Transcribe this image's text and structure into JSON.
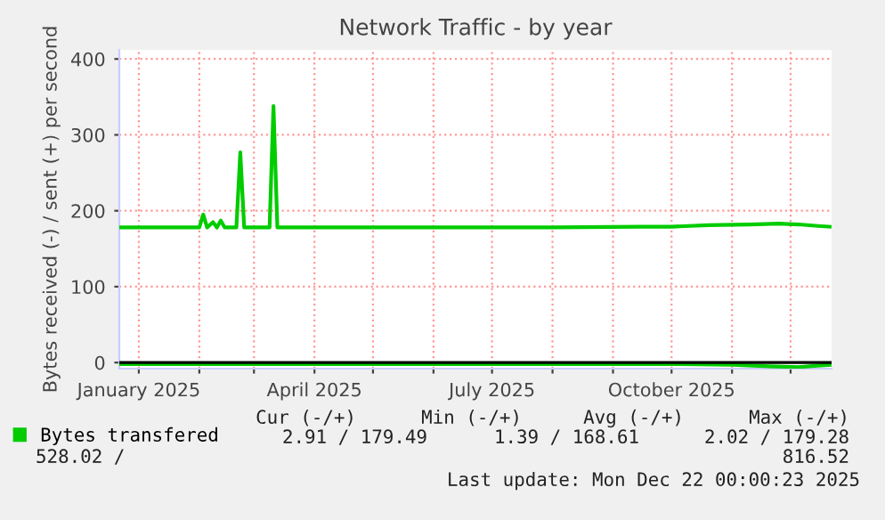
{
  "chart_data": {
    "type": "line",
    "title": "Network Traffic - by year",
    "ylabel": "Bytes received (-) / sent (+) per second",
    "x": [
      "2024-12-22",
      "2025-01-10",
      "2025-02-01",
      "2025-02-03",
      "2025-02-05",
      "2025-02-08",
      "2025-02-10",
      "2025-02-12",
      "2025-02-14",
      "2025-02-20",
      "2025-02-22",
      "2025-02-24",
      "2025-03-09",
      "2025-03-11",
      "2025-03-13",
      "2025-04-15",
      "2025-06-01",
      "2025-08-01",
      "2025-09-15",
      "2025-10-01",
      "2025-10-20",
      "2025-11-10",
      "2025-11-25",
      "2025-12-05",
      "2025-12-15",
      "2025-12-21"
    ],
    "series": [
      {
        "name": "Bytes transfered",
        "color": "#00cc00",
        "values": [
          178,
          178,
          178,
          195,
          178,
          185,
          178,
          187,
          178,
          178,
          277,
          178,
          178,
          338,
          178,
          178,
          178,
          178,
          179,
          179,
          181,
          182,
          183,
          182,
          180,
          179
        ]
      },
      {
        "color": "#00cc00",
        "x": [
          "2024-12-22",
          "2025-06-01",
          "2025-10-01",
          "2025-11-01",
          "2025-11-20",
          "2025-12-05",
          "2025-12-15",
          "2025-12-21"
        ],
        "values": [
          -2,
          -2,
          -2,
          -3,
          -5,
          -6,
          -4,
          -3
        ]
      }
    ],
    "xlim": [
      "2024-12-22",
      "2025-12-22"
    ],
    "xticks": [
      {
        "value": "2025-01-01",
        "label": "January 2025"
      },
      {
        "value": "2025-02-01",
        "label": null
      },
      {
        "value": "2025-03-01",
        "label": null
      },
      {
        "value": "2025-04-01",
        "label": "April 2025"
      },
      {
        "value": "2025-05-01",
        "label": null
      },
      {
        "value": "2025-06-01",
        "label": null
      },
      {
        "value": "2025-07-01",
        "label": "July 2025"
      },
      {
        "value": "2025-08-01",
        "label": null
      },
      {
        "value": "2025-09-01",
        "label": null
      },
      {
        "value": "2025-10-01",
        "label": "October 2025"
      },
      {
        "value": "2025-11-01",
        "label": null
      },
      {
        "value": "2025-12-01",
        "label": null
      }
    ],
    "ylim": [
      -8,
      412
    ],
    "yticks": [
      0,
      100,
      200,
      300,
      400
    ],
    "ref_lines": [
      {
        "axis": "y",
        "value": 0,
        "color": "#000000"
      }
    ],
    "grid": true,
    "legend": "bottom left",
    "annotations": [
      "Cur (-/+)",
      "Min (-/+)",
      "Avg (-/+)",
      "Max (-/+)",
      "2.91 / 179.49",
      "1.39 / 168.61",
      "2.02 / 179.28",
      "528.02 /",
      "816.52",
      "Last update: Mon Dec 22 00:00:23 2025"
    ]
  }
}
